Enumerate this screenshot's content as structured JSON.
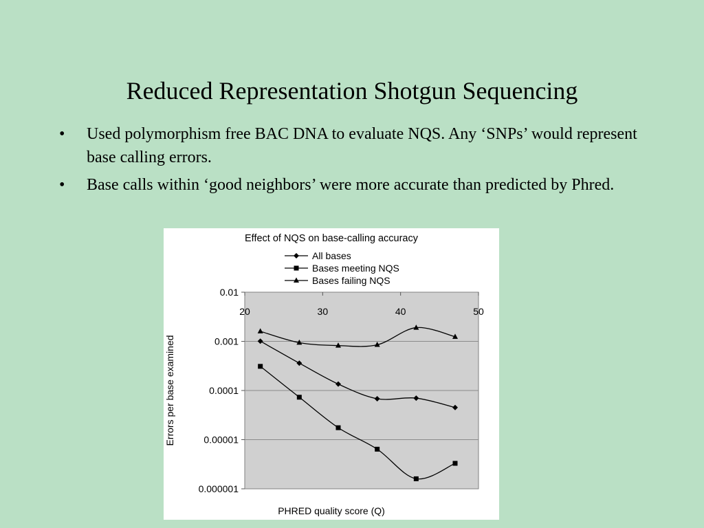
{
  "slide": {
    "title": "Reduced Representation Shotgun Sequencing",
    "bullets": [
      "Used polymorphism free BAC DNA to evaluate NQS.  Any ‘SNPs’ would represent base calling errors.",
      "Base calls within ‘good neighbors’ were more accurate than predicted by Phred."
    ],
    "bullet_symbol": "•",
    "background_color": "#bae0c5"
  },
  "chart_data": {
    "type": "line",
    "title": "Effect of NQS on base-calling accuracy",
    "xlabel": "PHRED quality score (Q)",
    "ylabel": "Errors per base examined",
    "y_scale": "log",
    "ylim": [
      1e-06,
      0.01
    ],
    "xlim": [
      20,
      50
    ],
    "x_ticks": [
      "20",
      "30",
      "40",
      "50"
    ],
    "y_ticks": [
      "0.01",
      "0.001",
      "0.0001",
      "0.00001",
      "0.000001"
    ],
    "x_axis_position": "top",
    "grid": true,
    "legend_position": "top",
    "plot_background": "#d0d0d0",
    "x": [
      22,
      27,
      32,
      37,
      42,
      47
    ],
    "series": [
      {
        "name": "All bases",
        "marker": "diamond",
        "values": [
          0.00101,
          0.00036,
          0.000135,
          6.8e-05,
          7e-05,
          4.5e-05
        ]
      },
      {
        "name": "Bases meeting NQS",
        "marker": "square",
        "values": [
          0.00031,
          7.3e-05,
          1.75e-05,
          6.4e-06,
          1.6e-06,
          3.3e-06
        ]
      },
      {
        "name": "Bases failing NQS",
        "marker": "triangle",
        "values": [
          0.0016,
          0.00094,
          0.00082,
          0.00085,
          0.0019,
          0.00124
        ]
      }
    ]
  }
}
